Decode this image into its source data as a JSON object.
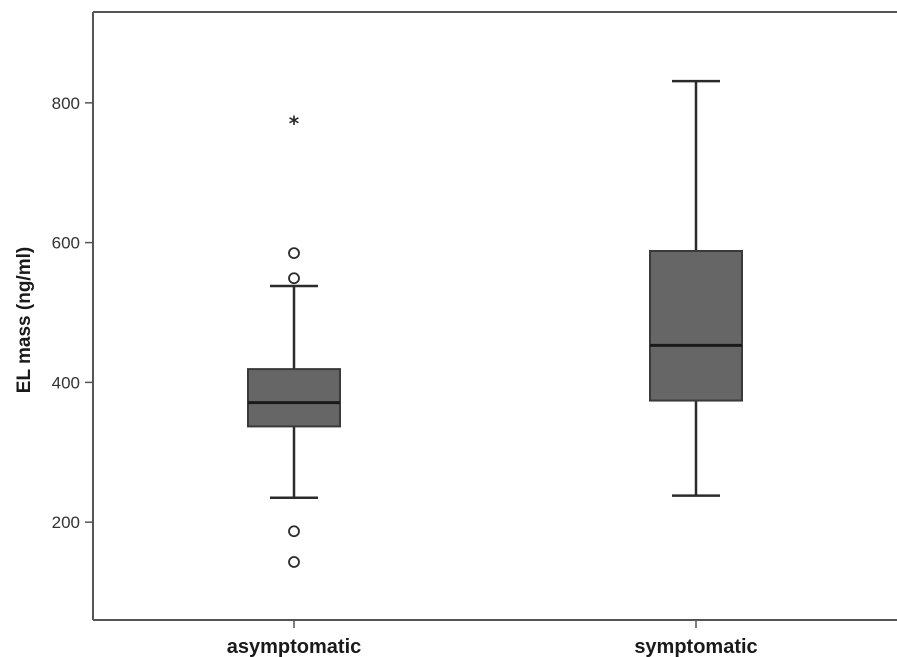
{
  "chart_data": {
    "type": "box",
    "title": "",
    "xlabel": "",
    "ylabel": "EL mass (ng/ml)",
    "ylim": [
      60,
      930
    ],
    "yticks": [
      200,
      400,
      600,
      800
    ],
    "grid": false,
    "categories": [
      "asymptomatic",
      "symptomatic"
    ],
    "boxes": [
      {
        "category": "asymptomatic",
        "whisker_low": 235,
        "q1": 337,
        "median": 371,
        "q3": 419,
        "whisker_high": 538,
        "outliers": [
          585,
          549,
          187,
          143
        ],
        "extremes": [
          772
        ]
      },
      {
        "category": "symptomatic",
        "whisker_low": 238,
        "q1": 374,
        "median": 453,
        "q3": 588,
        "whisker_high": 831,
        "outliers": [],
        "extremes": []
      }
    ],
    "colors": {
      "box_fill": "#666666",
      "line": "#2b2b2b",
      "axis": "#555555"
    }
  }
}
